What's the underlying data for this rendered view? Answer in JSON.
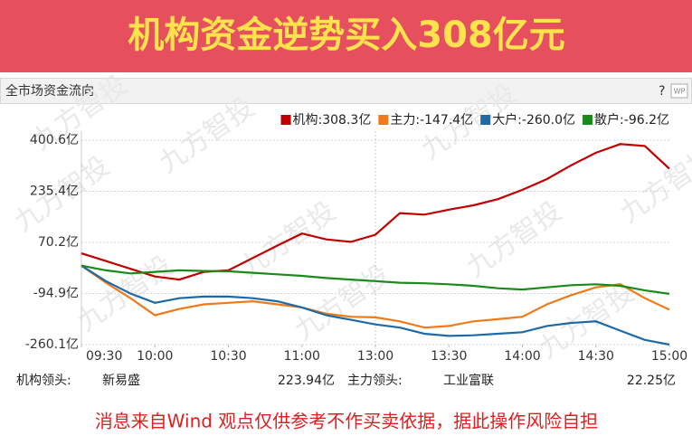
{
  "banner": {
    "title": "机构资金逆势买入308亿元"
  },
  "header": {
    "title": "全市场资金流向",
    "help": "?",
    "icon": "WP"
  },
  "watermark": "九方智投",
  "chart_data": {
    "type": "line",
    "x": [
      0,
      10,
      20,
      30,
      40,
      50,
      60,
      70,
      80,
      90,
      100,
      110,
      120,
      130,
      140,
      150,
      160,
      170,
      180,
      190,
      200,
      210,
      220,
      230,
      240
    ],
    "xlim": [
      0,
      240
    ],
    "xticks": [
      {
        "value": 0,
        "label": "09:30"
      },
      {
        "value": 30,
        "label": "10:00"
      },
      {
        "value": 60,
        "label": "10:30"
      },
      {
        "value": 90,
        "label": "11:00"
      },
      {
        "value": 120,
        "label": "13:00"
      },
      {
        "value": 150,
        "label": "13:30"
      },
      {
        "value": 180,
        "label": "14:00"
      },
      {
        "value": 210,
        "label": "14:30"
      },
      {
        "value": 240,
        "label": "15:00"
      }
    ],
    "ylim": [
      -260.1,
      400.6
    ],
    "yticks": [
      {
        "value": 400.6,
        "label": "400.6亿"
      },
      {
        "value": 235.4,
        "label": "235.4亿"
      },
      {
        "value": 70.2,
        "label": "70.2亿"
      },
      {
        "value": -94.9,
        "label": "-94.9亿"
      },
      {
        "value": -260.1,
        "label": "-260.1亿"
      }
    ],
    "grid": true,
    "series": [
      {
        "name": "机构:308.3亿",
        "color": "#c00000",
        "values": [
          35,
          10,
          -15,
          -40,
          -50,
          -25,
          -20,
          20,
          60,
          99,
          80,
          72,
          95,
          165,
          160,
          176,
          190,
          210,
          240,
          275,
          320,
          360,
          388,
          382,
          308.3
        ]
      },
      {
        "name": "主力:-147.4亿",
        "color": "#f07a1a",
        "values": [
          -5,
          -60,
          -110,
          -165,
          -145,
          -130,
          -125,
          -120,
          -130,
          -140,
          -160,
          -170,
          -172,
          -185,
          -205,
          -200,
          -185,
          -178,
          -170,
          -130,
          -100,
          -75,
          -65,
          -110,
          -147.4
        ]
      },
      {
        "name": "大户:-260.0亿",
        "color": "#1f6aa5",
        "values": [
          -5,
          -55,
          -95,
          -125,
          -110,
          -105,
          -105,
          -110,
          -120,
          -140,
          -165,
          -180,
          -195,
          -205,
          -225,
          -232,
          -230,
          -225,
          -220,
          -200,
          -190,
          -185,
          -215,
          -245,
          -260.0
        ]
      },
      {
        "name": "散户:-96.2亿",
        "color": "#1a8a1a",
        "values": [
          -5,
          -20,
          -30,
          -25,
          -20,
          -22,
          -23,
          -28,
          -33,
          -38,
          -45,
          -50,
          -55,
          -60,
          -62,
          -65,
          -70,
          -78,
          -82,
          -75,
          -68,
          -65,
          -70,
          -85,
          -96.2
        ]
      }
    ]
  },
  "footer": {
    "inst_label": "机构领头:",
    "inst_stock": "新易盛",
    "inst_amount": "223.94亿",
    "main_label": "主力领头:",
    "main_stock": "工业富联",
    "main_amount": "22.25亿"
  },
  "disclaimer": "消息来自Wind 观点仅供参考不作买卖依据，据此操作风险自担"
}
